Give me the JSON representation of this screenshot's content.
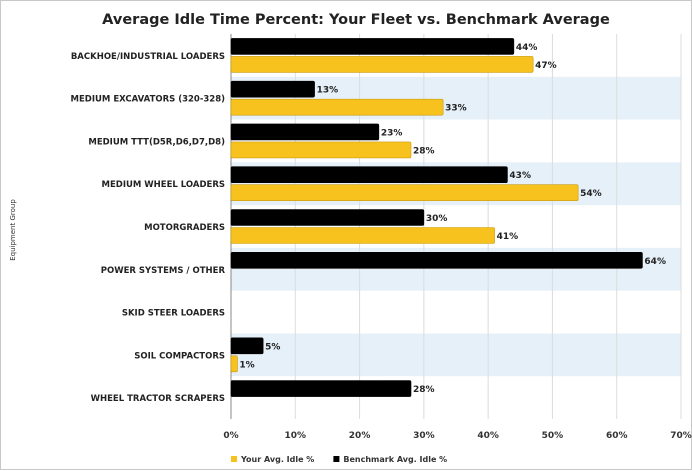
{
  "chart_data": {
    "type": "bar",
    "orientation": "horizontal",
    "title": "Average Idle Time Percent: Your Fleet vs. Benchmark Average",
    "xlabel": "",
    "ylabel": "Equipment Group",
    "xlim": [
      0,
      70
    ],
    "x_ticks": [
      "0%",
      "10%",
      "20%",
      "30%",
      "40%",
      "50%",
      "60%",
      "70%"
    ],
    "grid": true,
    "legend_position": "bottom",
    "categories": [
      "BACKHOE/INDUSTRIAL LOADERS",
      "MEDIUM EXCAVATORS (320-328)",
      "MEDIUM TTT(D5R,D6,D7,D8)",
      "MEDIUM WHEEL LOADERS",
      "MOTORGRADERS",
      "POWER SYSTEMS / OTHER",
      "SKID STEER LOADERS",
      "SOIL COMPACTORS",
      "WHEEL TRACTOR SCRAPERS"
    ],
    "series": [
      {
        "name": "Benchmark Avg. Idle %",
        "color": "#000000",
        "values": [
          44,
          13,
          23,
          43,
          30,
          64,
          null,
          5,
          28
        ],
        "labels": [
          "44%",
          "13%",
          "23%",
          "43%",
          "30%",
          "64%",
          "",
          "5%",
          "28%"
        ]
      },
      {
        "name": "Your Avg. Idle %",
        "color": "#f7c21e",
        "values": [
          47,
          33,
          28,
          54,
          41,
          null,
          null,
          1,
          null
        ],
        "labels": [
          "47%",
          "33%",
          "28%",
          "54%",
          "41%",
          "",
          "",
          "1%",
          ""
        ]
      }
    ],
    "legend": [
      {
        "name": "Your Avg. Idle %",
        "color": "#f7c21e"
      },
      {
        "name": "Benchmark Avg. Idle %",
        "color": "#000000"
      }
    ],
    "band_color": "#e6f0f9"
  }
}
